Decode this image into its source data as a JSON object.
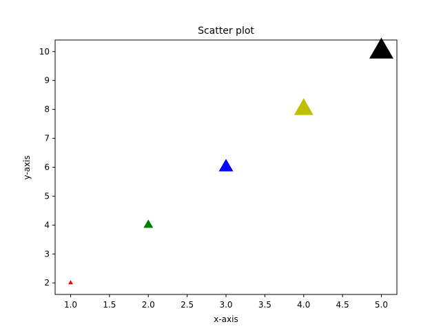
{
  "chart_data": {
    "type": "scatter",
    "title": "Scatter plot",
    "xlabel": "x-axis",
    "ylabel": "y-axis",
    "xlim": [
      0.8,
      5.2
    ],
    "ylim": [
      1.6,
      10.4
    ],
    "grid": false,
    "marker": "triangle-up",
    "x_ticks": [
      1.0,
      1.5,
      2.0,
      2.5,
      3.0,
      3.5,
      4.0,
      4.5,
      5.0
    ],
    "y_ticks": [
      2,
      3,
      4,
      5,
      6,
      7,
      8,
      9,
      10
    ],
    "points": [
      {
        "x": 1,
        "y": 2,
        "size": 10,
        "color": "#ff0000"
      },
      {
        "x": 2,
        "y": 4,
        "size": 20,
        "color": "#008000"
      },
      {
        "x": 3,
        "y": 6,
        "size": 30,
        "color": "#0000ff"
      },
      {
        "x": 4,
        "y": 8,
        "size": 40,
        "color": "#bfbf00"
      },
      {
        "x": 5,
        "y": 10,
        "size": 50,
        "color": "#000000"
      }
    ]
  }
}
